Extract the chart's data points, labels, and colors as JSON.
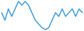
{
  "y": [
    5,
    3,
    6,
    4,
    6,
    8,
    7,
    8,
    7,
    5,
    3,
    2,
    1,
    0.5,
    1,
    3,
    5,
    4,
    6,
    4,
    5,
    6,
    4,
    6,
    5
  ],
  "line_color": "#3a9ad9",
  "linewidth": 1.1,
  "background_color": "#ffffff"
}
